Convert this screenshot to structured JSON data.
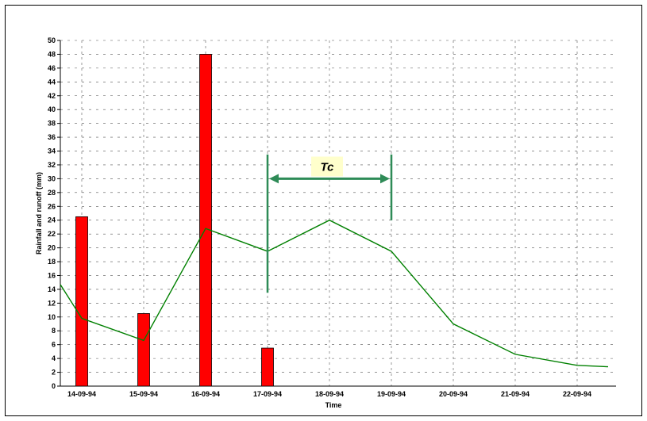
{
  "chart_data": {
    "type": "bar+line",
    "categories": [
      "14-09-94",
      "15-09-94",
      "16-09-94",
      "17-09-94",
      "18-09-94",
      "19-09-94",
      "20-09-94",
      "21-09-94",
      "22-09-94"
    ],
    "ylabel": "Rainfall and runoff (mm)",
    "xlabel": "Time",
    "ylim": [
      0,
      50
    ],
    "ytick_step": 2,
    "grid": true,
    "bar_series": {
      "color": "#ff0000",
      "points": [
        {
          "x": "14-09-94",
          "value": 24.5
        },
        {
          "x": "15-09-94",
          "value": 10.5
        },
        {
          "x": "16-09-94",
          "value": 48
        },
        {
          "x": "17-09-94",
          "value": 5.5
        }
      ]
    },
    "line_series": {
      "color": "#008000",
      "points": [
        {
          "x": "13-09-94",
          "value": 14.7
        },
        {
          "x": "14-09-94",
          "value": 9.8
        },
        {
          "x": "15-09-94",
          "value": 6.6
        },
        {
          "x": "16-09-94",
          "value": 22.8
        },
        {
          "x": "17-09-94",
          "value": 19.5
        },
        {
          "x": "18-09-94",
          "value": 24
        },
        {
          "x": "19-09-94",
          "value": 19.5
        },
        {
          "x": "20-09-94",
          "value": 9
        },
        {
          "x": "21-09-94",
          "value": 4.6
        },
        {
          "x": "22-09-94",
          "value": 3
        },
        {
          "x": "22-09-94 +0.5",
          "value": 2.8
        }
      ]
    },
    "annotation": {
      "label": "Tc",
      "from": "17-09-94",
      "to": "19-09-94",
      "color": "#2e8b57",
      "label_bg": "#ffffcc"
    }
  }
}
